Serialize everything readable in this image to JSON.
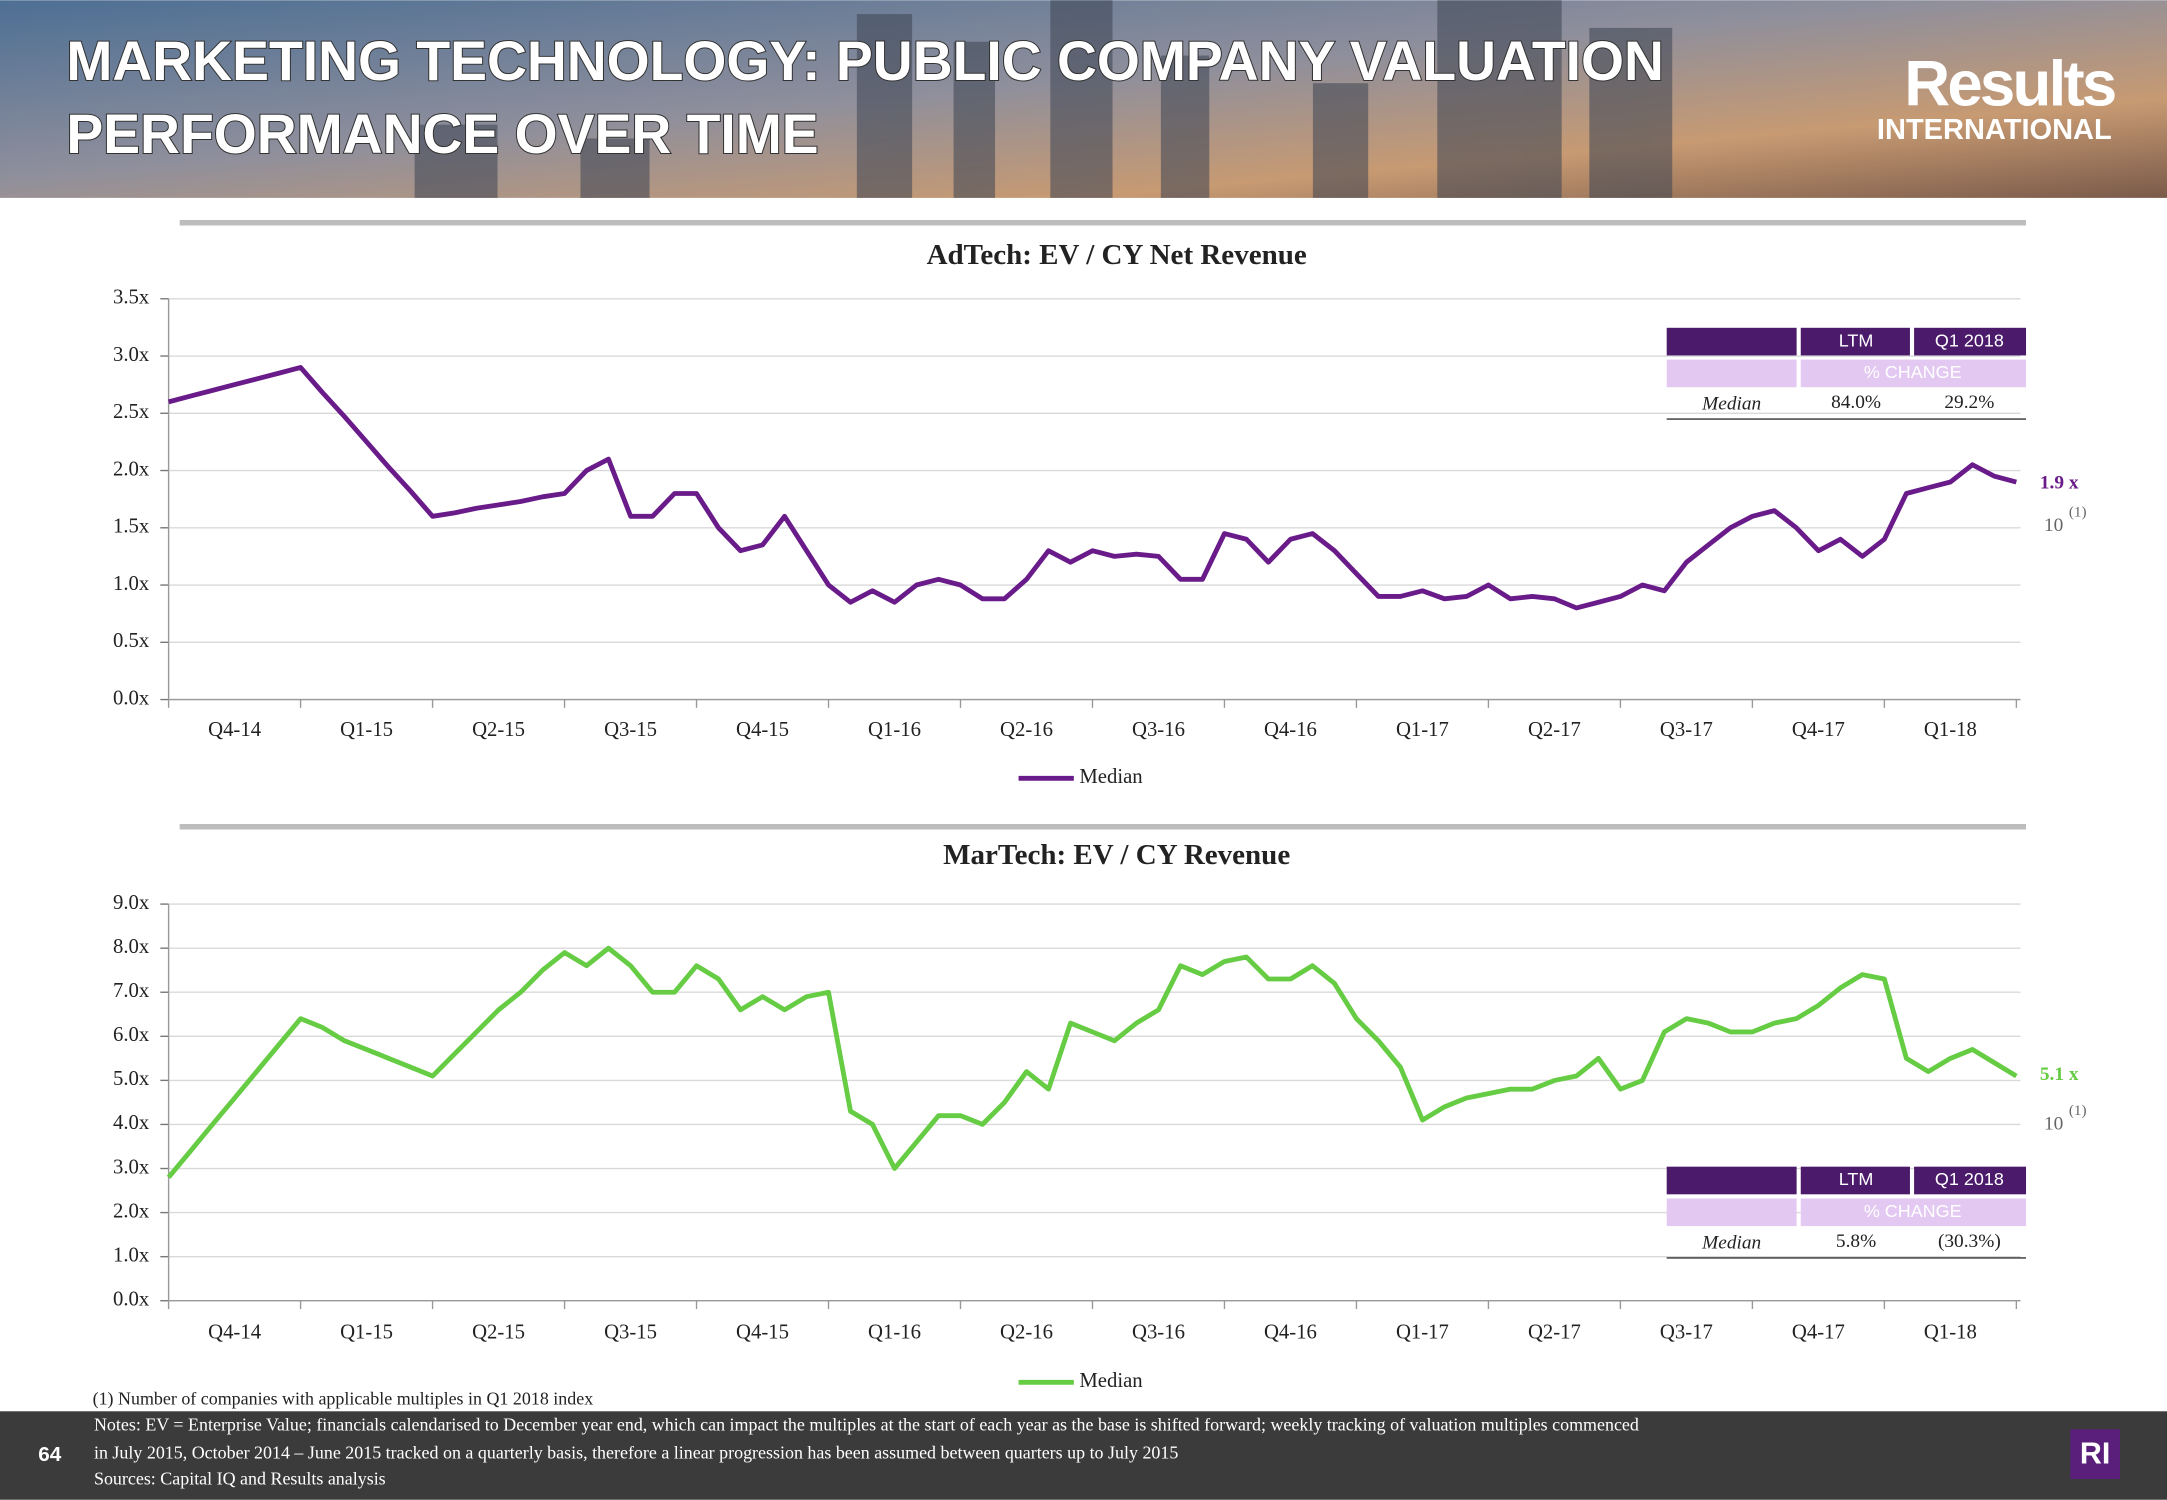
{
  "header": {
    "title_lines": [
      "MARKETING TECHNOLOGY: PUBLIC COMPANY VALUATION",
      "PERFORMANCE OVER TIME"
    ],
    "logo": [
      "Results",
      "INTERNATIONAL"
    ]
  },
  "chart_data": [
    {
      "type": "line",
      "title": "AdTech: EV / CY Net Revenue",
      "categories": [
        null,
        null,
        null,
        "Q4-14",
        null,
        null,
        null,
        null,
        null,
        "Q1-15",
        null,
        null,
        null,
        null,
        null,
        "Q2-15",
        null,
        null,
        null,
        null,
        null,
        "Q3-15",
        null,
        null,
        null,
        null,
        null,
        "Q4-15",
        null,
        null,
        null,
        null,
        null,
        "Q1-16",
        null,
        null,
        null,
        null,
        null,
        "Q2-16",
        null,
        null,
        null,
        null,
        null,
        "Q3-16",
        null,
        null,
        null,
        null,
        null,
        "Q4-16",
        null,
        null,
        null,
        null,
        null,
        "Q1-17",
        null,
        null,
        null,
        null,
        null,
        "Q2-17",
        null,
        null,
        null,
        null,
        null,
        "Q3-17",
        null,
        null,
        null,
        null,
        null,
        "Q4-17",
        null,
        null,
        null,
        null,
        null,
        "Q1-18",
        null,
        null,
        null
      ],
      "series": [
        {
          "name": "Median",
          "color": "#6a1b8a",
          "values": [
            2.6,
            2.65,
            2.7,
            2.75,
            2.8,
            2.85,
            2.9,
            2.68,
            2.47,
            2.25,
            2.03,
            1.82,
            1.6,
            1.63,
            1.67,
            1.7,
            1.73,
            1.77,
            1.8,
            2.0,
            2.1,
            1.6,
            1.6,
            1.8,
            1.8,
            1.5,
            1.3,
            1.35,
            1.6,
            1.3,
            1.0,
            0.85,
            0.95,
            0.85,
            1.0,
            1.05,
            1.0,
            0.88,
            0.88,
            1.05,
            1.3,
            1.2,
            1.3,
            1.25,
            1.27,
            1.25,
            1.05,
            1.05,
            1.45,
            1.4,
            1.2,
            1.4,
            1.45,
            1.3,
            1.1,
            0.9,
            0.9,
            0.95,
            0.88,
            0.9,
            1.0,
            0.88,
            0.9,
            0.88,
            0.8,
            0.85,
            0.9,
            1.0,
            0.95,
            1.2,
            1.35,
            1.5,
            1.6,
            1.65,
            1.5,
            1.3,
            1.4,
            1.25,
            1.4,
            1.8,
            1.85,
            1.9,
            2.05,
            1.95,
            1.9
          ]
        }
      ],
      "ylim": [
        0,
        3.5
      ],
      "yticks": [
        {
          "value": 0,
          "label": "0.0x"
        },
        {
          "value": 0.5,
          "label": "0.5x"
        },
        {
          "value": 1,
          "label": "1.0x"
        },
        {
          "value": 1.5,
          "label": "1.5x"
        },
        {
          "value": 2,
          "label": "2.0x"
        },
        {
          "value": 2.5,
          "label": "2.5x"
        },
        {
          "value": 3,
          "label": "3.0x"
        },
        {
          "value": 3.5,
          "label": "3.5x"
        }
      ],
      "grid": true,
      "table": {
        "columns": [
          "LTM",
          "Q1 2018"
        ],
        "subheader": "% CHANGE",
        "row_label": "Median",
        "row": [
          "84.0%",
          "29.2%"
        ]
      },
      "end_label": "1.9 x",
      "count": "10",
      "count_note": "(1)"
    },
    {
      "type": "line",
      "title": "MarTech: EV / CY Revenue",
      "categories": [
        null,
        null,
        null,
        "Q4-14",
        null,
        null,
        null,
        null,
        null,
        "Q1-15",
        null,
        null,
        null,
        null,
        null,
        "Q2-15",
        null,
        null,
        null,
        null,
        null,
        "Q3-15",
        null,
        null,
        null,
        null,
        null,
        "Q4-15",
        null,
        null,
        null,
        null,
        null,
        "Q1-16",
        null,
        null,
        null,
        null,
        null,
        "Q2-16",
        null,
        null,
        null,
        null,
        null,
        "Q3-16",
        null,
        null,
        null,
        null,
        null,
        "Q4-16",
        null,
        null,
        null,
        null,
        null,
        "Q1-17",
        null,
        null,
        null,
        null,
        null,
        "Q2-17",
        null,
        null,
        null,
        null,
        null,
        "Q3-17",
        null,
        null,
        null,
        null,
        null,
        "Q4-17",
        null,
        null,
        null,
        null,
        null,
        "Q1-18",
        null,
        null,
        null
      ],
      "series": [
        {
          "name": "Median",
          "color": "#66cc44",
          "values": [
            2.8,
            3.4,
            4.0,
            4.6,
            5.2,
            5.8,
            6.4,
            6.2,
            5.9,
            5.7,
            5.5,
            5.3,
            5.1,
            5.6,
            6.1,
            6.6,
            7.0,
            7.5,
            7.9,
            7.6,
            8.0,
            7.6,
            7.0,
            7.0,
            7.6,
            7.3,
            6.6,
            6.9,
            6.6,
            6.9,
            7.0,
            4.3,
            4.0,
            3.0,
            3.6,
            4.2,
            4.2,
            4.0,
            4.5,
            5.2,
            4.8,
            6.3,
            6.1,
            5.9,
            6.3,
            6.6,
            7.6,
            7.4,
            7.7,
            7.8,
            7.3,
            7.3,
            7.6,
            7.2,
            6.4,
            5.9,
            5.3,
            4.1,
            4.4,
            4.6,
            4.7,
            4.8,
            4.8,
            5.0,
            5.1,
            5.5,
            4.8,
            5.0,
            6.1,
            6.4,
            6.3,
            6.1,
            6.1,
            6.3,
            6.4,
            6.7,
            7.1,
            7.4,
            7.3,
            5.5,
            5.2,
            5.5,
            5.7,
            5.4,
            5.1
          ]
        }
      ],
      "ylim": [
        0,
        9
      ],
      "yticks": [
        {
          "value": 0,
          "label": "0.0x"
        },
        {
          "value": 1,
          "label": "1.0x"
        },
        {
          "value": 2,
          "label": "2.0x"
        },
        {
          "value": 3,
          "label": "3.0x"
        },
        {
          "value": 4,
          "label": "4.0x"
        },
        {
          "value": 5,
          "label": "5.0x"
        },
        {
          "value": 6,
          "label": "6.0x"
        },
        {
          "value": 7,
          "label": "7.0x"
        },
        {
          "value": 8,
          "label": "8.0x"
        },
        {
          "value": 9,
          "label": "9.0x"
        }
      ],
      "grid": true,
      "table": {
        "columns": [
          "LTM",
          "Q1 2018"
        ],
        "subheader": "% CHANGE",
        "row_label": "Median",
        "row": [
          "5.8%",
          "(30.3%)"
        ]
      },
      "end_label": "5.1 x",
      "count": "10",
      "count_note": "(1)"
    }
  ],
  "footnote": "(1) Number of companies with applicable multiples in Q1 2018 index",
  "notes": [
    "Notes: EV = Enterprise Value; financials calendarised to December year end, which can impact the multiples at the start of each year as the base is shifted forward; weekly tracking of valuation multiples commenced",
    "in July 2015, October 2014 – June 2015 tracked on a quarterly basis, therefore a linear progression has been assumed between quarters up to July 2015"
  ],
  "sources": "Sources: Capital IQ and Results analysis",
  "page_number": "64",
  "badge": "RI"
}
